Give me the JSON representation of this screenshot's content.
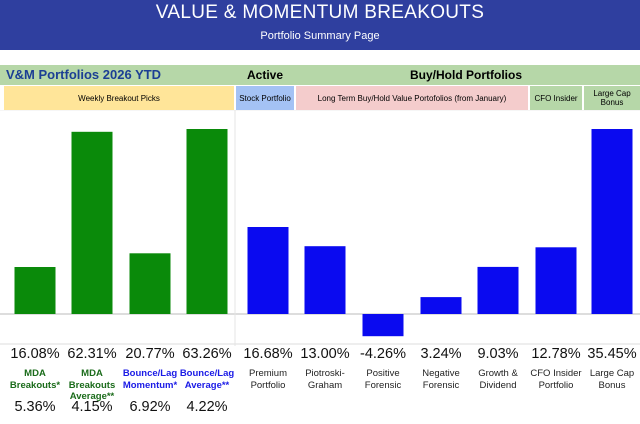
{
  "header": {
    "title": "VALUE & MOMENTUM BREAKOUTS",
    "subtitle": "Portfolio Summary Page"
  },
  "section_row": {
    "main": "V&M Portfolios 2026 YTD",
    "active": "Active",
    "buyhold": "Buy/Hold Portfolios"
  },
  "groups": {
    "weekly": "Weekly Breakout Picks",
    "stock": "Stock Portfolio",
    "ltbh": "Long Term Buy/Hold Value Portofolios (from January)",
    "cfo": "CFO Insider",
    "lcb": "Large Cap Bonus"
  },
  "colors": {
    "green": "#0a8a0a",
    "blue": "#0a0af0"
  },
  "chart_data": {
    "type": "bar",
    "unit": "%",
    "categories": [
      "MDA Breakouts*",
      "MDA Breakouts Average**",
      "Bounce/Lag Momentum*",
      "Bounce/Lag Average**",
      "Premium Portfolio",
      "Piotroski-Graham",
      "Positive Forensic",
      "Negative Forensic",
      "Growth & Dividend",
      "CFO Insider Portfolio",
      "Large Cap Bonus"
    ],
    "values": [
      16.08,
      62.31,
      20.77,
      63.26,
      16.68,
      13.0,
      -4.26,
      3.24,
      9.03,
      12.78,
      35.45
    ],
    "value_labels": [
      "16.08%",
      "62.31%",
      "20.77%",
      "63.26%",
      "16.68%",
      "13.00%",
      "-4.26%",
      "3.24%",
      "9.03%",
      "12.78%",
      "35.45%"
    ],
    "secondary_labels": [
      "5.36%",
      "4.15%",
      "6.92%",
      "4.22%"
    ],
    "bar_colors": [
      "green",
      "green",
      "green",
      "green",
      "blue",
      "blue",
      "blue",
      "blue",
      "blue",
      "blue",
      "blue"
    ],
    "scale_note": "weekly picks (green) and buy/hold portfolios (blue) are drawn on separate scales"
  }
}
